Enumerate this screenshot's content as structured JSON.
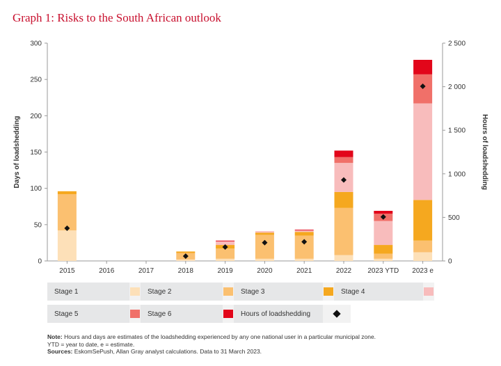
{
  "title": "Graph 1: Risks to the South African outlook",
  "chart_data": {
    "type": "bar",
    "stacked": true,
    "categories": [
      "2015",
      "2016",
      "2017",
      "2018",
      "2019",
      "2020",
      "2021",
      "2022",
      "2023 YTD",
      "2023 e"
    ],
    "ylabel": "Days of loadshedding",
    "y2label": "Hours of loadshedding",
    "ylim": [
      0,
      300
    ],
    "y2lim": [
      0,
      2500
    ],
    "yticks": [
      "0",
      "50",
      "100",
      "150",
      "200",
      "250",
      "300"
    ],
    "y2ticks": [
      "0",
      "500",
      "1 000",
      "1 500",
      "2 000",
      "2 500"
    ],
    "series": [
      {
        "name": "Stage 1",
        "color": "#fde0b8",
        "values": [
          42,
          0,
          0,
          2,
          3,
          3,
          3,
          8,
          3,
          12
        ]
      },
      {
        "name": "Stage 2",
        "color": "#fbc070",
        "values": [
          50,
          0,
          0,
          9,
          14,
          33,
          32,
          65,
          7,
          16
        ]
      },
      {
        "name": "Stage 3",
        "color": "#f5a81f",
        "values": [
          4,
          0,
          0,
          2,
          5,
          3,
          5,
          22,
          12,
          56
        ]
      },
      {
        "name": "Stage 4",
        "color": "#f8bcbc",
        "values": [
          0,
          0,
          0,
          0,
          5,
          2,
          2,
          40,
          33,
          133
        ]
      },
      {
        "name": "Stage 5",
        "color": "#f07069",
        "values": [
          0,
          0,
          0,
          0,
          0,
          0,
          0,
          8,
          10,
          40
        ]
      },
      {
        "name": "Stage 6",
        "color": "#e2061a",
        "values": [
          0,
          0,
          0,
          0,
          1,
          0,
          1,
          9,
          4,
          20
        ]
      }
    ],
    "line_series": {
      "name": "Hours of loadshedding",
      "color": "#111111",
      "axis": "right",
      "values": [
        375,
        null,
        null,
        55,
        160,
        210,
        220,
        930,
        505,
        2005
      ]
    },
    "grid": false,
    "legend_position": "bottom"
  },
  "legend": {
    "row1": [
      "Stage 1",
      "Stage 2",
      "Stage 3",
      "Stage 4"
    ],
    "row2": [
      "Stage 5",
      "Stage 6",
      "Hours of loadshedding"
    ]
  },
  "notes": {
    "note_label": "Note:",
    "note_text": " Hours and days are estimates of the loadshedding experienced by any one national user in a particular municipal zone.",
    "note_text2": "YTD = year to date, e = estimate.",
    "sources_label": "Sources:",
    "sources_text": " EskomSePush, Allan Gray analyst calculations. Data to 31 March 2023."
  }
}
